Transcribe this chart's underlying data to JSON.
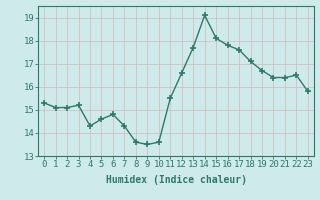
{
  "x": [
    0,
    1,
    2,
    3,
    4,
    5,
    6,
    7,
    8,
    9,
    10,
    11,
    12,
    13,
    14,
    15,
    16,
    17,
    18,
    19,
    20,
    21,
    22,
    23
  ],
  "y": [
    15.3,
    15.1,
    15.1,
    15.2,
    14.3,
    14.6,
    14.8,
    14.3,
    13.6,
    13.5,
    13.6,
    15.5,
    16.6,
    17.7,
    19.1,
    18.1,
    17.8,
    17.6,
    17.1,
    16.7,
    16.4,
    16.4,
    16.5,
    15.8
  ],
  "line_color": "#2d7a6b",
  "marker": "+",
  "marker_size": 4,
  "line_width": 1.0,
  "bg_color": "#ceeaea",
  "grid_color_major": "#b8d4d4",
  "grid_color_minor": "#cce4e4",
  "xlabel": "Humidex (Indice chaleur)",
  "ylim": [
    13,
    19.5
  ],
  "xlim": [
    -0.5,
    23.5
  ],
  "yticks": [
    13,
    14,
    15,
    16,
    17,
    18,
    19
  ],
  "xticks": [
    0,
    1,
    2,
    3,
    4,
    5,
    6,
    7,
    8,
    9,
    10,
    11,
    12,
    13,
    14,
    15,
    16,
    17,
    18,
    19,
    20,
    21,
    22,
    23
  ],
  "tick_color": "#2d7a6b",
  "label_fontsize": 7,
  "tick_fontsize": 6.5,
  "spine_color": "#2d7a6b"
}
